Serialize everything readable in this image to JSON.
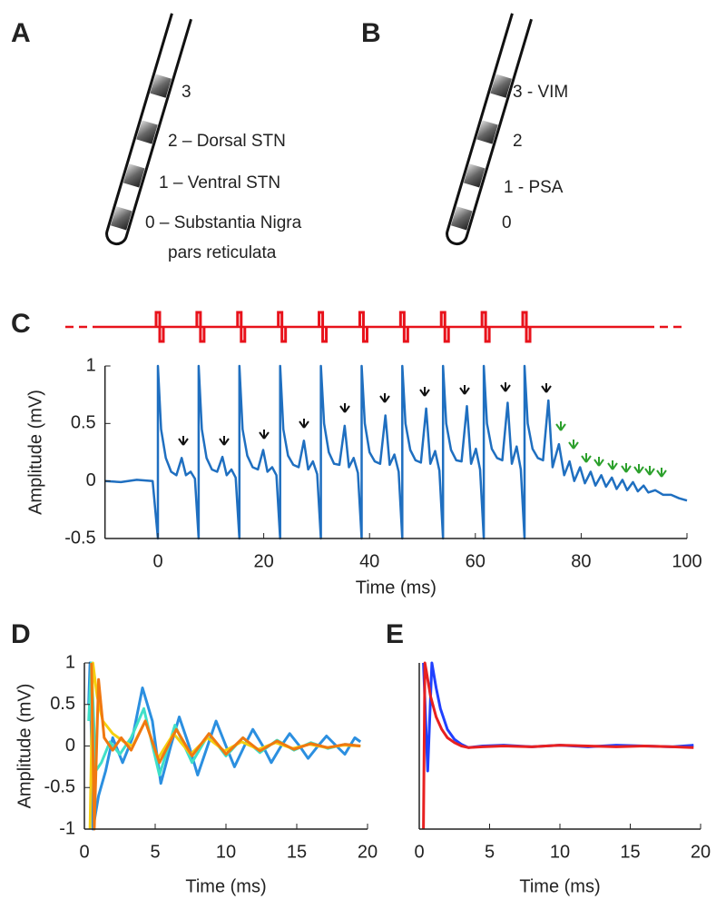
{
  "diagrams": [
    {
      "panel": "A",
      "contacts": [
        {
          "label": "3"
        },
        {
          "label": "2 – Dorsal STN"
        },
        {
          "label": "1 – Ventral STN"
        },
        {
          "label": "0 – Substantia Nigra",
          "sublabel": "pars reticulata"
        }
      ]
    },
    {
      "panel": "B",
      "contacts": [
        {
          "label": "3 - VIM"
        },
        {
          "label": "2"
        },
        {
          "label": "1 - PSA"
        },
        {
          "label": "0"
        }
      ]
    }
  ],
  "chart_data": [
    {
      "type": "line",
      "panel": "C",
      "xlabel": "Time (ms)",
      "ylabel": "Amplitude (mV)",
      "xlim": [
        -10,
        100
      ],
      "ylim": [
        -0.5,
        1
      ],
      "xticks": [
        0,
        20,
        40,
        60,
        80,
        100
      ],
      "yticks": [
        -0.5,
        0,
        0.5,
        1
      ],
      "stimulus": {
        "color": "#e8121b",
        "x": [
          0,
          7.7,
          15.4,
          23.1,
          30.8,
          38.5,
          46.2,
          53.9,
          61.6,
          69.3
        ]
      },
      "series": [
        {
          "color": "#1f6fc0",
          "x": [
            -10,
            -7,
            -4,
            -1,
            0,
            0,
            0.6,
            1.5,
            2.5,
            3.5,
            4.5,
            5.3,
            6.2,
            7.0,
            7.7,
            7.7,
            8.3,
            9.2,
            10.2,
            11.2,
            12.2,
            13,
            13.9,
            14.7,
            15.4,
            15.4,
            16,
            16.9,
            17.9,
            18.9,
            19.9,
            20.7,
            21.6,
            22.4,
            23.1,
            23.1,
            23.7,
            24.6,
            25.6,
            26.6,
            27.6,
            28.4,
            29.3,
            30.1,
            30.8,
            30.8,
            31.4,
            32.3,
            33.3,
            34.3,
            35.3,
            36.1,
            37,
            37.8,
            38.5,
            38.5,
            39.1,
            40,
            41,
            42,
            43,
            43.8,
            44.7,
            45.5,
            46.2,
            46.2,
            46.8,
            47.7,
            48.7,
            49.7,
            50.7,
            51.5,
            52.4,
            53.2,
            53.9,
            53.9,
            54.5,
            55.4,
            56.4,
            57.4,
            58.4,
            59.2,
            60.1,
            60.9,
            61.6,
            61.6,
            62.2,
            63.1,
            64.1,
            65.1,
            66.1,
            66.9,
            67.8,
            68.6,
            69.3,
            69.3,
            69.9,
            70.8,
            71.8,
            72.8,
            73.8,
            74.6,
            75.8,
            76.8,
            77.8,
            78.7,
            79.8,
            80.7,
            81.8,
            82.7,
            83.8,
            84.7,
            85.8,
            86.7,
            87.8,
            88.7,
            89.8,
            90.7,
            91.8,
            92.7,
            94,
            95.5,
            97,
            98.5,
            100
          ],
          "values": [
            0,
            -0.01,
            0.01,
            0,
            -0.5,
            1,
            0.45,
            0.2,
            0.08,
            0.05,
            0.2,
            0.05,
            0.08,
            0.02,
            -0.5,
            1,
            0.45,
            0.2,
            0.1,
            0.08,
            0.21,
            0.05,
            0.1,
            0.03,
            -0.5,
            1,
            0.45,
            0.22,
            0.12,
            0.1,
            0.27,
            0.08,
            0.12,
            0.05,
            -0.5,
            1,
            0.45,
            0.22,
            0.14,
            0.12,
            0.35,
            0.1,
            0.17,
            0.06,
            -0.5,
            1,
            0.5,
            0.25,
            0.15,
            0.14,
            0.48,
            0.12,
            0.2,
            0.07,
            -0.5,
            1,
            0.5,
            0.25,
            0.17,
            0.15,
            0.57,
            0.14,
            0.23,
            0.08,
            -0.5,
            1,
            0.5,
            0.27,
            0.18,
            0.16,
            0.63,
            0.15,
            0.26,
            0.09,
            -0.5,
            1,
            0.5,
            0.27,
            0.18,
            0.17,
            0.65,
            0.15,
            0.28,
            0.1,
            -0.5,
            1,
            0.5,
            0.28,
            0.2,
            0.18,
            0.68,
            0.15,
            0.3,
            0.1,
            -0.5,
            1,
            0.5,
            0.28,
            0.2,
            0.18,
            0.7,
            0.12,
            0.32,
            0.05,
            0.17,
            0,
            0.12,
            -0.02,
            0.08,
            -0.04,
            0.05,
            -0.05,
            0.03,
            -0.07,
            0.01,
            -0.08,
            -0.01,
            -0.09,
            -0.04,
            -0.1,
            -0.08,
            -0.12,
            -0.12,
            -0.15,
            -0.17
          ]
        }
      ]
    },
    {
      "type": "line",
      "panel": "D",
      "xlabel": "Time (ms)",
      "ylabel": "Amplitude (mV)",
      "xlim": [
        0,
        20
      ],
      "ylim": [
        -1,
        1
      ],
      "xticks": [
        0,
        5,
        10,
        15,
        20
      ],
      "yticks": [
        -1,
        -0.5,
        0,
        0.5,
        1
      ],
      "series": [
        {
          "color": "#2b8fe0",
          "x": [
            0.3,
            0.4,
            0.6,
            1,
            1.5,
            2,
            2.7,
            3.4,
            4.1,
            4.8,
            5.4,
            6.1,
            6.7,
            7.4,
            8,
            8.7,
            9.3,
            10,
            10.6,
            11.3,
            11.9,
            12.6,
            13.2,
            13.9,
            14.5,
            15.2,
            15.8,
            16.5,
            17.1,
            17.8,
            18.4,
            19.1,
            19.5
          ],
          "values": [
            0.5,
            1,
            -1,
            -0.6,
            -0.3,
            0.1,
            -0.2,
            0.1,
            0.7,
            0.3,
            -0.45,
            0,
            0.35,
            0,
            -0.35,
            0,
            0.3,
            0,
            -0.25,
            0,
            0.2,
            0,
            -0.2,
            0,
            0.15,
            0,
            -0.15,
            0,
            0.12,
            0,
            -0.1,
            0.1,
            0.05
          ]
        },
        {
          "color": "#3fe0c8",
          "x": [
            0.3,
            0.5,
            0.8,
            1.2,
            1.8,
            2.5,
            3.3,
            4.2,
            5.3,
            6.4,
            7.6,
            8.8,
            10,
            11.2,
            12.4,
            13.6,
            14.8,
            16,
            17.2,
            18.4,
            19.5
          ],
          "values": [
            0.3,
            1,
            -0.3,
            -0.2,
            0.05,
            -0.1,
            0.1,
            0.45,
            -0.35,
            0.25,
            -0.2,
            0.15,
            -0.12,
            0.1,
            -0.08,
            0.07,
            -0.05,
            0.04,
            -0.03,
            0.02,
            0
          ]
        },
        {
          "color": "#f5d010",
          "x": [
            0.4,
            0.6,
            0.9,
            1.3,
            2,
            2.8,
            3.4,
            4.3,
            5.2,
            6.3,
            7.5,
            8.7,
            9.9,
            11.1,
            12.3,
            13.5,
            14.7,
            15.9,
            17.1,
            18.3,
            19.5
          ],
          "values": [
            -1,
            1,
            0.6,
            0.3,
            0.15,
            0.05,
            0,
            0.3,
            -0.15,
            0.15,
            -0.1,
            0.1,
            -0.06,
            0.05,
            -0.04,
            0.04,
            -0.03,
            0.02,
            -0.02,
            0.01,
            0
          ]
        },
        {
          "color": "#f07810",
          "x": [
            0.5,
            0.7,
            1,
            1.4,
            2,
            2.6,
            3.3,
            4.3,
            5.3,
            6.5,
            7.6,
            8.8,
            10,
            11.2,
            12.4,
            13.6,
            14.8,
            16,
            17.2,
            18.4,
            19.5
          ],
          "values": [
            1,
            -1,
            0.8,
            0.1,
            -0.05,
            0.1,
            -0.05,
            0.3,
            -0.2,
            0.2,
            -0.12,
            0.15,
            -0.1,
            0.1,
            -0.06,
            0.06,
            -0.04,
            0.03,
            -0.02,
            0.02,
            0
          ]
        }
      ]
    },
    {
      "type": "line",
      "panel": "E",
      "xlabel": "Time (ms)",
      "xlim": [
        0,
        20
      ],
      "ylim": [
        -1,
        1
      ],
      "xticks": [
        0,
        5,
        10,
        15,
        20
      ],
      "series": [
        {
          "color": "#2040ff",
          "x": [
            0.3,
            0.6,
            0.9,
            1.2,
            1.5,
            2,
            2.5,
            3,
            3.5,
            4.5,
            6,
            8,
            10,
            12,
            14,
            16,
            18,
            19.5
          ],
          "values": [
            1,
            -0.3,
            1,
            0.7,
            0.45,
            0.2,
            0.08,
            0.02,
            -0.02,
            0,
            0.01,
            -0.01,
            0.01,
            -0.01,
            0.01,
            0,
            -0.01,
            0.01
          ]
        },
        {
          "color": "#e82020",
          "x": [
            0.3,
            0.4,
            0.5,
            0.8,
            1.2,
            1.6,
            2,
            2.5,
            3,
            3.5,
            4.5,
            6,
            8,
            10,
            12,
            14,
            16,
            18,
            19.5
          ],
          "values": [
            -1,
            1,
            0.9,
            0.6,
            0.35,
            0.2,
            0.1,
            0.04,
            0,
            -0.02,
            -0.01,
            0,
            -0.01,
            0.01,
            0,
            -0.01,
            0,
            -0.01,
            -0.02
          ]
        }
      ]
    }
  ]
}
